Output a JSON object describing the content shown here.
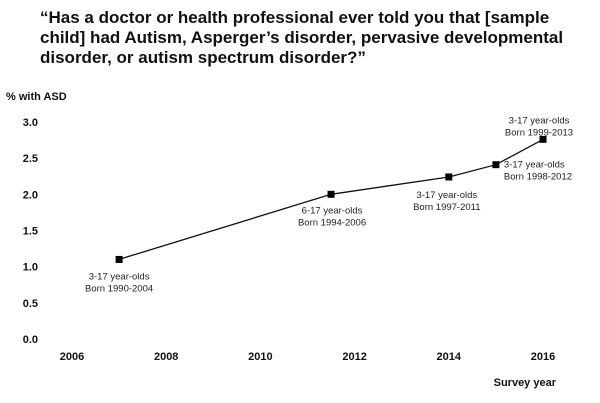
{
  "chart_data": {
    "type": "line",
    "title": "“Has a doctor or health professional ever told you that [sample child] had Autism, Asperger’s disorder, pervasive developmental disorder, or autism spectrum disorder?”",
    "ylabel": "% with ASD",
    "xlabel": "Survey year",
    "xlim": [
      2006,
      2016
    ],
    "ylim": [
      0,
      3.0
    ],
    "x_ticks": [
      "2006",
      "2008",
      "2010",
      "2012",
      "2014",
      "2016"
    ],
    "y_ticks": [
      "0.0",
      "0.5",
      "1.0",
      "1.5",
      "2.0",
      "2.5",
      "3.0"
    ],
    "grid": false,
    "series": [
      {
        "x": [
          2007,
          2011.5,
          2014,
          2015,
          2016
        ],
        "values": [
          1.1,
          2.0,
          2.24,
          2.41,
          2.76
        ]
      }
    ],
    "annotations": [
      {
        "lines": [
          "3-17 year-olds",
          "Born 1990-2004"
        ],
        "x": 2007,
        "y": 1.1
      },
      {
        "lines": [
          "6-17 year-olds",
          "Born 1994-2006"
        ],
        "x": 2011.5,
        "y": 2.0
      },
      {
        "lines": [
          "3-17 year-olds",
          "Born 1997-2011"
        ],
        "x": 2014,
        "y": 2.24
      },
      {
        "lines": [
          "3-17 year-olds",
          "Born 1998-2012"
        ],
        "x": 2015,
        "y": 2.41
      },
      {
        "lines": [
          "3-17 year-olds",
          "Born 1999-2013"
        ],
        "x": 2016,
        "y": 2.76
      }
    ],
    "colors": {
      "line": "#111111",
      "marker": "#000000"
    }
  }
}
